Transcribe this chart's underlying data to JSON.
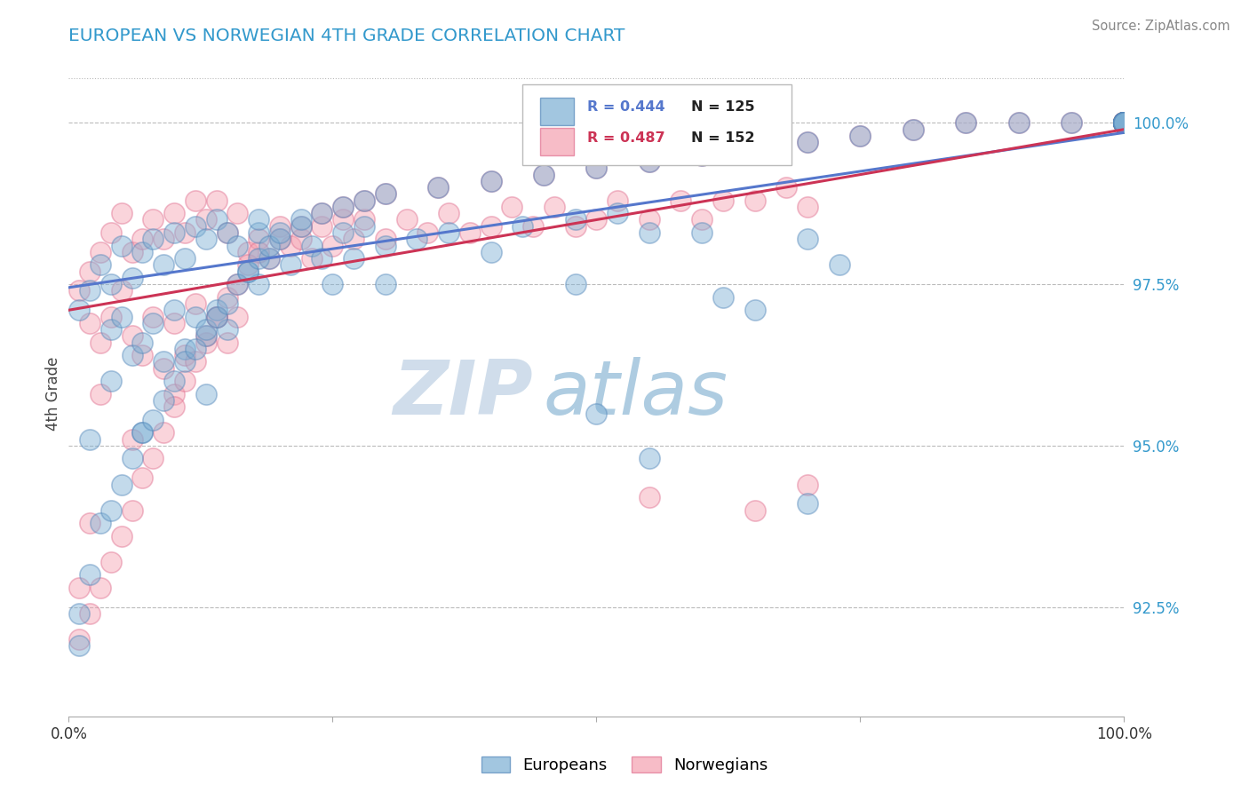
{
  "title": "EUROPEAN VS NORWEGIAN 4TH GRADE CORRELATION CHART",
  "source_text": "Source: ZipAtlas.com",
  "ylabel": "4th Grade",
  "xmin": 0.0,
  "xmax": 1.0,
  "ymin": 0.908,
  "ymax": 1.008,
  "right_yticks": [
    1.0,
    0.975,
    0.95,
    0.925
  ],
  "right_ytick_labels": [
    "100.0%",
    "97.5%",
    "95.0%",
    "92.5%"
  ],
  "blue_color": "#7BAFD4",
  "red_color": "#F4A0B0",
  "blue_edge_color": "#5588BB",
  "red_edge_color": "#E07090",
  "blue_line_color": "#5577CC",
  "red_line_color": "#CC3355",
  "legend_R_blue": "R = 0.444",
  "legend_N_blue": "N = 125",
  "legend_R_red": "R = 0.487",
  "legend_N_red": "N = 152",
  "watermark_zip": "ZIP",
  "watermark_atlas": "atlas",
  "watermark_color_zip": "#C8D8E8",
  "watermark_color_atlas": "#A0C4DC",
  "grid_color": "#BBBBBB",
  "background_color": "#FFFFFF",
  "blue_scatter_x": [
    0.01,
    0.02,
    0.03,
    0.04,
    0.04,
    0.05,
    0.05,
    0.06,
    0.06,
    0.07,
    0.07,
    0.08,
    0.08,
    0.09,
    0.09,
    0.1,
    0.1,
    0.11,
    0.11,
    0.12,
    0.12,
    0.13,
    0.13,
    0.14,
    0.14,
    0.15,
    0.15,
    0.16,
    0.17,
    0.18,
    0.18,
    0.19,
    0.2,
    0.21,
    0.22,
    0.23,
    0.24,
    0.25,
    0.26,
    0.27,
    0.28,
    0.3,
    0.33,
    0.36,
    0.4,
    0.43,
    0.48,
    0.52,
    0.55,
    0.6,
    0.65,
    0.7,
    0.73,
    0.5,
    0.55,
    0.62,
    0.7,
    0.48,
    0.3,
    0.18,
    0.13,
    0.07,
    0.04,
    0.02,
    0.01,
    0.01,
    0.02,
    0.03,
    0.04,
    0.05,
    0.06,
    0.07,
    0.08,
    0.09,
    0.1,
    0.11,
    0.12,
    0.13,
    0.14,
    0.15,
    0.16,
    0.17,
    0.18,
    0.19,
    0.2,
    0.22,
    0.24,
    0.26,
    0.28,
    0.3,
    0.35,
    0.4,
    0.45,
    0.5,
    0.55,
    0.6,
    0.65,
    0.7,
    0.75,
    0.8,
    0.85,
    0.9,
    0.95,
    1.0,
    1.0,
    1.0,
    1.0,
    1.0,
    1.0,
    1.0,
    1.0,
    1.0,
    1.0,
    1.0,
    1.0,
    1.0,
    1.0,
    1.0,
    1.0,
    1.0,
    1.0,
    1.0,
    1.0,
    1.0,
    1.0
  ],
  "blue_scatter_y": [
    0.971,
    0.974,
    0.978,
    0.975,
    0.968,
    0.981,
    0.97,
    0.976,
    0.964,
    0.98,
    0.966,
    0.982,
    0.969,
    0.978,
    0.963,
    0.983,
    0.971,
    0.979,
    0.965,
    0.984,
    0.97,
    0.982,
    0.967,
    0.985,
    0.971,
    0.983,
    0.968,
    0.981,
    0.977,
    0.983,
    0.975,
    0.979,
    0.982,
    0.978,
    0.984,
    0.981,
    0.979,
    0.975,
    0.983,
    0.979,
    0.984,
    0.981,
    0.982,
    0.983,
    0.98,
    0.984,
    0.975,
    0.986,
    0.983,
    0.983,
    0.971,
    0.982,
    0.978,
    0.955,
    0.948,
    0.973,
    0.941,
    0.985,
    0.975,
    0.985,
    0.958,
    0.952,
    0.96,
    0.951,
    0.919,
    0.924,
    0.93,
    0.938,
    0.94,
    0.944,
    0.948,
    0.952,
    0.954,
    0.957,
    0.96,
    0.963,
    0.965,
    0.968,
    0.97,
    0.972,
    0.975,
    0.977,
    0.979,
    0.981,
    0.983,
    0.985,
    0.986,
    0.987,
    0.988,
    0.989,
    0.99,
    0.991,
    0.992,
    0.993,
    0.994,
    0.995,
    0.996,
    0.997,
    0.998,
    0.999,
    1.0,
    1.0,
    1.0,
    1.0,
    1.0,
    1.0,
    1.0,
    1.0,
    1.0,
    1.0,
    1.0,
    1.0,
    1.0,
    1.0,
    1.0,
    1.0,
    1.0,
    1.0,
    1.0,
    1.0,
    1.0,
    1.0,
    1.0,
    1.0,
    1.0
  ],
  "red_scatter_x": [
    0.01,
    0.02,
    0.02,
    0.03,
    0.03,
    0.04,
    0.04,
    0.05,
    0.05,
    0.06,
    0.06,
    0.07,
    0.07,
    0.08,
    0.08,
    0.09,
    0.09,
    0.1,
    0.1,
    0.11,
    0.11,
    0.12,
    0.12,
    0.13,
    0.13,
    0.14,
    0.14,
    0.15,
    0.15,
    0.16,
    0.16,
    0.17,
    0.18,
    0.19,
    0.2,
    0.21,
    0.22,
    0.23,
    0.24,
    0.25,
    0.26,
    0.27,
    0.28,
    0.3,
    0.32,
    0.34,
    0.36,
    0.38,
    0.4,
    0.42,
    0.44,
    0.46,
    0.48,
    0.5,
    0.52,
    0.55,
    0.58,
    0.6,
    0.62,
    0.65,
    0.68,
    0.7,
    0.55,
    0.65,
    0.7,
    0.1,
    0.06,
    0.03,
    0.02,
    0.01,
    0.01,
    0.02,
    0.03,
    0.04,
    0.05,
    0.06,
    0.07,
    0.08,
    0.09,
    0.1,
    0.11,
    0.12,
    0.13,
    0.14,
    0.15,
    0.16,
    0.17,
    0.18,
    0.2,
    0.22,
    0.24,
    0.26,
    0.28,
    0.3,
    0.35,
    0.4,
    0.45,
    0.5,
    0.55,
    0.6,
    0.65,
    0.7,
    0.75,
    0.8,
    0.85,
    0.9,
    0.95,
    1.0,
    1.0,
    1.0,
    1.0,
    1.0,
    1.0,
    1.0,
    1.0,
    1.0,
    1.0,
    1.0,
    1.0,
    1.0,
    1.0,
    1.0,
    1.0,
    1.0,
    1.0,
    1.0,
    1.0,
    1.0,
    1.0,
    1.0,
    1.0,
    1.0,
    1.0,
    1.0,
    1.0,
    1.0,
    1.0,
    1.0,
    1.0,
    1.0,
    1.0,
    1.0,
    1.0,
    1.0,
    1.0,
    1.0,
    1.0,
    1.0,
    1.0,
    1.0
  ],
  "red_scatter_y": [
    0.974,
    0.977,
    0.969,
    0.98,
    0.966,
    0.983,
    0.97,
    0.986,
    0.974,
    0.98,
    0.967,
    0.982,
    0.964,
    0.985,
    0.97,
    0.982,
    0.962,
    0.986,
    0.969,
    0.983,
    0.964,
    0.988,
    0.972,
    0.985,
    0.966,
    0.988,
    0.97,
    0.983,
    0.966,
    0.986,
    0.97,
    0.98,
    0.982,
    0.979,
    0.984,
    0.981,
    0.982,
    0.979,
    0.984,
    0.981,
    0.985,
    0.982,
    0.985,
    0.982,
    0.985,
    0.983,
    0.986,
    0.983,
    0.984,
    0.987,
    0.984,
    0.987,
    0.984,
    0.985,
    0.988,
    0.985,
    0.988,
    0.985,
    0.988,
    0.988,
    0.99,
    0.987,
    0.942,
    0.94,
    0.944,
    0.958,
    0.951,
    0.958,
    0.938,
    0.928,
    0.92,
    0.924,
    0.928,
    0.932,
    0.936,
    0.94,
    0.945,
    0.948,
    0.952,
    0.956,
    0.96,
    0.963,
    0.967,
    0.97,
    0.973,
    0.975,
    0.978,
    0.98,
    0.982,
    0.984,
    0.986,
    0.987,
    0.988,
    0.989,
    0.99,
    0.991,
    0.992,
    0.993,
    0.994,
    0.995,
    0.996,
    0.997,
    0.998,
    0.999,
    1.0,
    1.0,
    1.0,
    1.0,
    1.0,
    1.0,
    1.0,
    1.0,
    1.0,
    1.0,
    1.0,
    1.0,
    1.0,
    1.0,
    1.0,
    1.0,
    1.0,
    1.0,
    1.0,
    1.0,
    1.0,
    1.0,
    1.0,
    1.0,
    1.0,
    1.0,
    1.0,
    1.0,
    1.0,
    1.0,
    1.0,
    1.0,
    1.0,
    1.0,
    1.0,
    1.0,
    1.0,
    1.0,
    1.0,
    1.0,
    1.0,
    1.0,
    1.0,
    1.0,
    1.0,
    1.0
  ],
  "blue_line_x0": 0.0,
  "blue_line_y0": 0.9745,
  "blue_line_x1": 1.0,
  "blue_line_y1": 0.9985,
  "red_line_x0": 0.0,
  "red_line_y0": 0.971,
  "red_line_x1": 1.0,
  "red_line_y1": 0.999
}
